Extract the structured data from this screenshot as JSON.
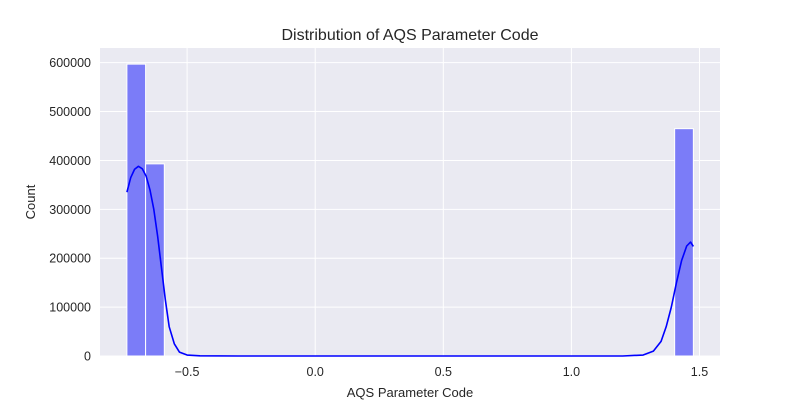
{
  "chart_data": {
    "type": "bar",
    "title": "Distribution of AQS Parameter Code",
    "xlabel": "AQS Parameter Code",
    "ylabel": "Count",
    "xlim": [
      -0.84,
      1.58
    ],
    "ylim": [
      0,
      630000
    ],
    "xticks": [
      {
        "value": -0.5,
        "label": "−0.5"
      },
      {
        "value": 0.0,
        "label": "0.0"
      },
      {
        "value": 0.5,
        "label": "0.5"
      },
      {
        "value": 1.0,
        "label": "1.0"
      },
      {
        "value": 1.5,
        "label": "1.5"
      }
    ],
    "yticks": [
      {
        "value": 0,
        "label": "0"
      },
      {
        "value": 100000,
        "label": "100000"
      },
      {
        "value": 200000,
        "label": "200000"
      },
      {
        "value": 300000,
        "label": "300000"
      },
      {
        "value": 400000,
        "label": "400000"
      },
      {
        "value": 500000,
        "label": "500000"
      },
      {
        "value": 600000,
        "label": "600000"
      }
    ],
    "bins": [
      {
        "x0": -0.735,
        "x1": -0.662,
        "count": 597000
      },
      {
        "x0": -0.662,
        "x1": -0.589,
        "count": 393000
      },
      {
        "x0": 1.403,
        "x1": 1.476,
        "count": 465000
      }
    ],
    "kde": {
      "points": [
        [
          -0.735,
          335000
        ],
        [
          -0.72,
          365000
        ],
        [
          -0.705,
          382000
        ],
        [
          -0.69,
          388000
        ],
        [
          -0.675,
          383000
        ],
        [
          -0.66,
          368000
        ],
        [
          -0.645,
          340000
        ],
        [
          -0.63,
          300000
        ],
        [
          -0.615,
          245000
        ],
        [
          -0.6,
          180000
        ],
        [
          -0.585,
          115000
        ],
        [
          -0.57,
          60000
        ],
        [
          -0.55,
          25000
        ],
        [
          -0.53,
          8000
        ],
        [
          -0.5,
          2000
        ],
        [
          -0.45,
          300
        ],
        [
          -0.3,
          0
        ],
        [
          0.0,
          0
        ],
        [
          0.5,
          0
        ],
        [
          1.0,
          0
        ],
        [
          1.2,
          0
        ],
        [
          1.28,
          2000
        ],
        [
          1.32,
          10000
        ],
        [
          1.35,
          30000
        ],
        [
          1.37,
          60000
        ],
        [
          1.39,
          100000
        ],
        [
          1.41,
          150000
        ],
        [
          1.43,
          195000
        ],
        [
          1.45,
          225000
        ],
        [
          1.465,
          233000
        ],
        [
          1.476,
          224000
        ]
      ]
    },
    "grid": true,
    "colors": {
      "bar_fill": "#7b7cf8",
      "bar_edge": "#ffffff",
      "kde_line": "#0000ff",
      "plot_background": "#eaeaf2",
      "grid": "#ffffff",
      "text": "#262626"
    }
  }
}
